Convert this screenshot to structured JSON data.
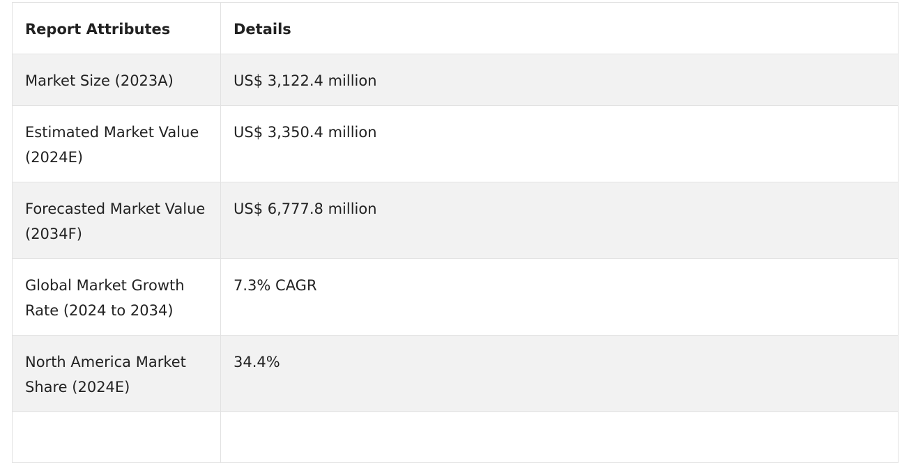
{
  "table": {
    "headers": [
      "Report Attributes",
      "Details"
    ],
    "rows": [
      {
        "attribute": "Market Size (2023A)",
        "detail": "US$ 3,122.4 million"
      },
      {
        "attribute": "Estimated Market Value (2024E)",
        "detail": "US$ 3,350.4 million"
      },
      {
        "attribute": "Forecasted Market Value (2034F)",
        "detail": "US$ 6,777.8 million"
      },
      {
        "attribute": "Global Market Growth Rate (2024 to 2034)",
        "detail": "7.3% CAGR"
      },
      {
        "attribute": "North America Market Share (2024E)",
        "detail": "34.4%"
      },
      {
        "attribute": "",
        "detail": ""
      }
    ]
  },
  "colors": {
    "shaded_row": "#f2f2f2",
    "border": "#e2e2e2",
    "text": "#222222"
  }
}
